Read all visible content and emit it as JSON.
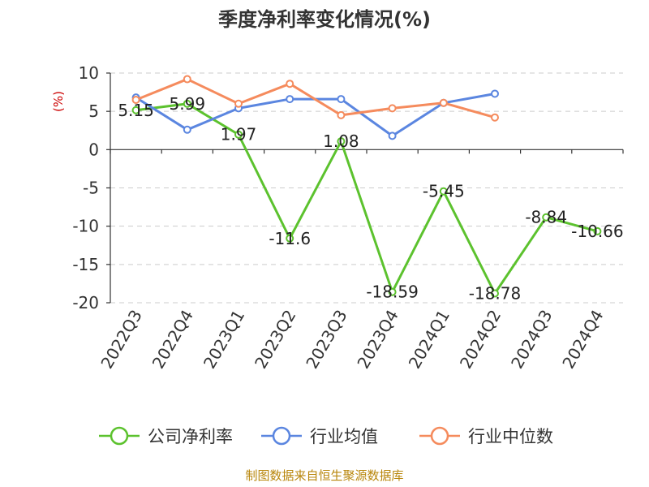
{
  "chart_data": {
    "type": "line",
    "title": "季度净利率变化情况(%)",
    "ylabel": "(%)",
    "xlabel": "",
    "categories": [
      "2022Q3",
      "2022Q4",
      "2023Q1",
      "2023Q2",
      "2023Q3",
      "2023Q4",
      "2024Q1",
      "2024Q2",
      "2024Q3",
      "2024Q4"
    ],
    "ylim": [
      -20,
      10
    ],
    "yticks": [
      10,
      5,
      0,
      -5,
      -10,
      -15,
      -20
    ],
    "grid": true,
    "legend_position": "bottom",
    "series": [
      {
        "name": "公司净利率",
        "color": "#5cc22e",
        "values": [
          5.15,
          5.99,
          1.97,
          -11.6,
          1.08,
          -18.59,
          -5.45,
          -18.78,
          -8.84,
          -10.66
        ],
        "labels": [
          "5.15",
          "5.99",
          "1.97",
          "-11.6",
          "1.08",
          "-18.59",
          "-5.45",
          "-18.78",
          "-8.84",
          "-10.66"
        ]
      },
      {
        "name": "行业均值",
        "color": "#5b86e0",
        "values": [
          6.8,
          2.6,
          5.4,
          6.6,
          6.6,
          1.8,
          6.1,
          7.3,
          null,
          null
        ]
      },
      {
        "name": "行业中位数",
        "color": "#f58b5d",
        "values": [
          6.5,
          9.2,
          6.0,
          8.6,
          4.5,
          5.4,
          6.1,
          4.2,
          null,
          null
        ]
      }
    ]
  },
  "source": "制图数据来自恒生聚源数据库"
}
